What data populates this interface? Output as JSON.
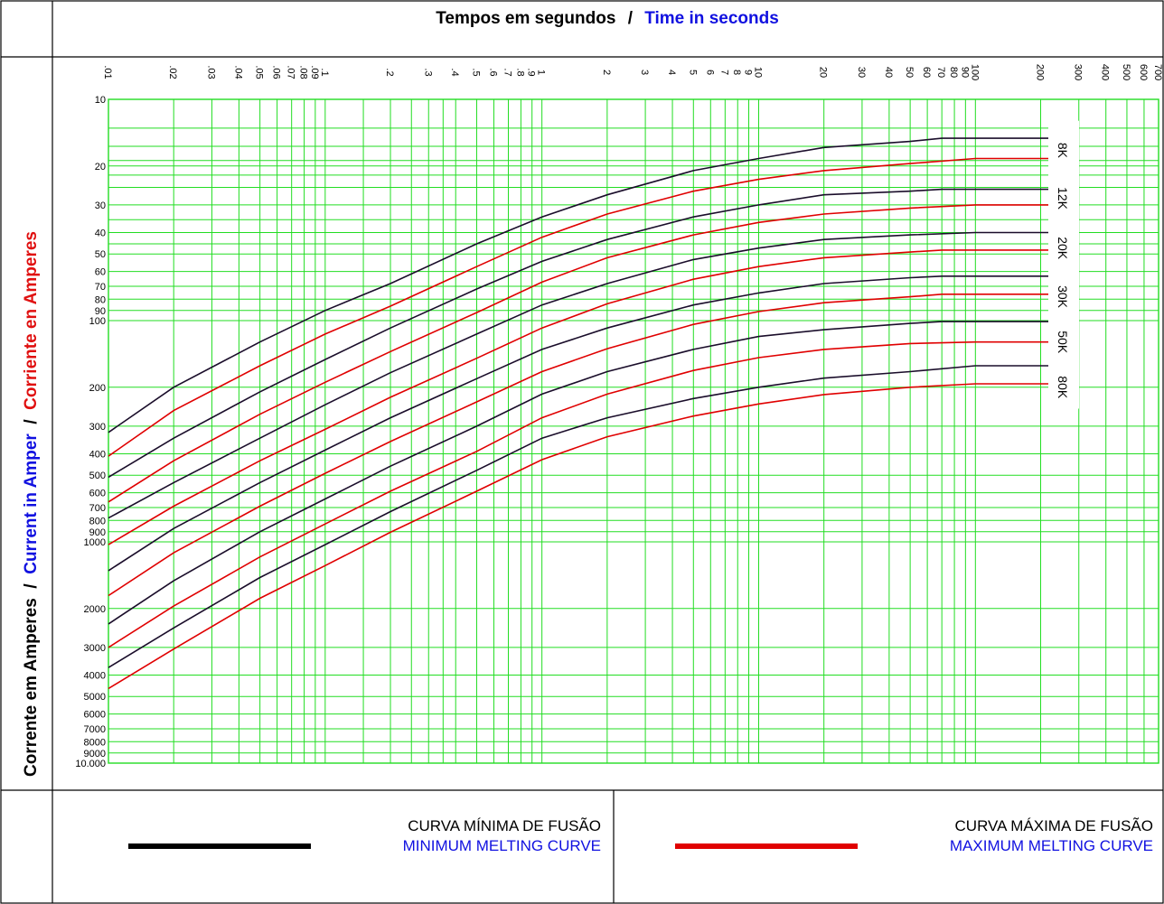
{
  "header": {
    "title_pt": "Tempos em segundos",
    "separator": "/",
    "title_en": "Time in seconds"
  },
  "side_label": {
    "pt": "Corrente em Amperes",
    "sep1": " / ",
    "en": "Current in Amper",
    "sep2": " / ",
    "es": "Corriente en Amperes"
  },
  "legend": {
    "min": {
      "line1": "CURVA MÍNIMA DE FUSÃO",
      "line2": "MINIMUM MELTING CURVE"
    },
    "max": {
      "line1": "CURVA MÁXIMA DE FUSÃO",
      "line2": "MAXIMUM MELTING CURVE"
    }
  },
  "colors": {
    "grid": "#22dd22",
    "min_curve": "#1a0d2a",
    "max_curve": "#e00000",
    "title_pt": "#000000",
    "title_en": "#1010e0",
    "label_es": "#e01010",
    "legend_en": "#1010e0"
  },
  "chart_data": {
    "type": "line",
    "x_scale": "log",
    "y_scale": "log",
    "y_inverted": true,
    "x_range": [
      0.01,
      700
    ],
    "y_range": [
      10,
      10000
    ],
    "x_ticks": [
      {
        "v": 0.01,
        "l": ".01"
      },
      {
        "v": 0.02,
        "l": ".02"
      },
      {
        "v": 0.03,
        "l": ".03"
      },
      {
        "v": 0.04,
        "l": ".04"
      },
      {
        "v": 0.05,
        "l": ".05"
      },
      {
        "v": 0.06,
        "l": ".06"
      },
      {
        "v": 0.07,
        "l": ".07"
      },
      {
        "v": 0.08,
        "l": ".08"
      },
      {
        "v": 0.09,
        "l": ".09"
      },
      {
        "v": 0.1,
        "l": ".1"
      },
      {
        "v": 0.2,
        "l": ".2"
      },
      {
        "v": 0.3,
        "l": ".3"
      },
      {
        "v": 0.4,
        "l": ".4"
      },
      {
        "v": 0.5,
        "l": ".5"
      },
      {
        "v": 0.6,
        "l": ".6"
      },
      {
        "v": 0.7,
        "l": ".7"
      },
      {
        "v": 0.8,
        "l": ".8"
      },
      {
        "v": 0.9,
        "l": ".9"
      },
      {
        "v": 1,
        "l": "1"
      },
      {
        "v": 2,
        "l": "2"
      },
      {
        "v": 3,
        "l": "3"
      },
      {
        "v": 4,
        "l": "4"
      },
      {
        "v": 5,
        "l": "5"
      },
      {
        "v": 6,
        "l": "6"
      },
      {
        "v": 7,
        "l": "7"
      },
      {
        "v": 8,
        "l": "8"
      },
      {
        "v": 9,
        "l": "9"
      },
      {
        "v": 10,
        "l": "10"
      },
      {
        "v": 20,
        "l": "20"
      },
      {
        "v": 30,
        "l": "30"
      },
      {
        "v": 40,
        "l": "40"
      },
      {
        "v": 50,
        "l": "50"
      },
      {
        "v": 60,
        "l": "60"
      },
      {
        "v": 70,
        "l": "70"
      },
      {
        "v": 80,
        "l": "80"
      },
      {
        "v": 90,
        "l": "90"
      },
      {
        "v": 100,
        "l": "100"
      },
      {
        "v": 200,
        "l": "200"
      },
      {
        "v": 300,
        "l": "300"
      },
      {
        "v": 400,
        "l": "400"
      },
      {
        "v": 500,
        "l": "500"
      },
      {
        "v": 600,
        "l": "600"
      },
      {
        "v": 700,
        "l": "700"
      }
    ],
    "y_ticks": [
      {
        "v": 10,
        "l": "10"
      },
      {
        "v": 20,
        "l": "20"
      },
      {
        "v": 30,
        "l": "30"
      },
      {
        "v": 40,
        "l": "40"
      },
      {
        "v": 50,
        "l": "50"
      },
      {
        "v": 60,
        "l": "60"
      },
      {
        "v": 70,
        "l": "70"
      },
      {
        "v": 80,
        "l": "80"
      },
      {
        "v": 90,
        "l": "90"
      },
      {
        "v": 100,
        "l": "100"
      },
      {
        "v": 200,
        "l": "200"
      },
      {
        "v": 300,
        "l": "300"
      },
      {
        "v": 400,
        "l": "400"
      },
      {
        "v": 500,
        "l": "500"
      },
      {
        "v": 600,
        "l": "600"
      },
      {
        "v": 700,
        "l": "700"
      },
      {
        "v": 800,
        "l": "800"
      },
      {
        "v": 900,
        "l": "900"
      },
      {
        "v": 1000,
        "l": "1000"
      },
      {
        "v": 2000,
        "l": "2000"
      },
      {
        "v": 3000,
        "l": "3000"
      },
      {
        "v": 4000,
        "l": "4000"
      },
      {
        "v": 5000,
        "l": "5000"
      },
      {
        "v": 6000,
        "l": "6000"
      },
      {
        "v": 7000,
        "l": "7000"
      },
      {
        "v": 8000,
        "l": "8000"
      },
      {
        "v": 9000,
        "l": "9000"
      },
      {
        "v": 10000,
        "l": "10.000"
      }
    ],
    "extra_y_grid": [
      13.5,
      16.3,
      18.9,
      22,
      25,
      35,
      45
    ],
    "extra_x_grid": [
      0.15,
      0.25,
      0.35
    ],
    "series_labels": [
      {
        "label": "8K",
        "y": 17
      },
      {
        "label": "12K",
        "y": 28
      },
      {
        "label": "20K",
        "y": 47
      },
      {
        "label": "30K",
        "y": 78
      },
      {
        "label": "50K",
        "y": 125
      },
      {
        "label": "80K",
        "y": 200
      }
    ],
    "series": [
      {
        "rating": "8K",
        "kind": "min",
        "points": [
          [
            0.01,
            320
          ],
          [
            0.02,
            200
          ],
          [
            0.05,
            125
          ],
          [
            0.1,
            90
          ],
          [
            0.2,
            68
          ],
          [
            0.5,
            45
          ],
          [
            1,
            34
          ],
          [
            2,
            27
          ],
          [
            5,
            21
          ],
          [
            10,
            18.5
          ],
          [
            20,
            16.5
          ],
          [
            50,
            15.5
          ],
          [
            70,
            15
          ],
          [
            300,
            15
          ]
        ]
      },
      {
        "rating": "8K",
        "kind": "max",
        "points": [
          [
            0.01,
            410
          ],
          [
            0.02,
            255
          ],
          [
            0.05,
            160
          ],
          [
            0.1,
            115
          ],
          [
            0.2,
            86
          ],
          [
            0.5,
            57
          ],
          [
            1,
            42
          ],
          [
            2,
            33
          ],
          [
            5,
            26
          ],
          [
            10,
            23
          ],
          [
            20,
            21
          ],
          [
            50,
            19.5
          ],
          [
            100,
            18.5
          ],
          [
            300,
            18.5
          ]
        ]
      },
      {
        "rating": "12K",
        "kind": "min",
        "points": [
          [
            0.01,
            510
          ],
          [
            0.02,
            340
          ],
          [
            0.05,
            210
          ],
          [
            0.1,
            150
          ],
          [
            0.2,
            108
          ],
          [
            0.5,
            72
          ],
          [
            1,
            54
          ],
          [
            2,
            43
          ],
          [
            5,
            34
          ],
          [
            10,
            30
          ],
          [
            20,
            27
          ],
          [
            50,
            26
          ],
          [
            70,
            25.5
          ],
          [
            300,
            25.5
          ]
        ]
      },
      {
        "rating": "12K",
        "kind": "max",
        "points": [
          [
            0.01,
            660
          ],
          [
            0.02,
            430
          ],
          [
            0.05,
            265
          ],
          [
            0.1,
            190
          ],
          [
            0.2,
            138
          ],
          [
            0.5,
            92
          ],
          [
            1,
            67
          ],
          [
            2,
            52
          ],
          [
            5,
            41
          ],
          [
            10,
            36
          ],
          [
            20,
            33
          ],
          [
            50,
            31
          ],
          [
            100,
            30
          ],
          [
            300,
            30
          ]
        ]
      },
      {
        "rating": "20K",
        "kind": "min",
        "points": [
          [
            0.01,
            780
          ],
          [
            0.02,
            540
          ],
          [
            0.05,
            340
          ],
          [
            0.1,
            240
          ],
          [
            0.2,
            172
          ],
          [
            0.5,
            115
          ],
          [
            1,
            85
          ],
          [
            2,
            68
          ],
          [
            5,
            53
          ],
          [
            10,
            47
          ],
          [
            20,
            43
          ],
          [
            50,
            41
          ],
          [
            100,
            40
          ],
          [
            300,
            40
          ]
        ]
      },
      {
        "rating": "20K",
        "kind": "max",
        "points": [
          [
            0.01,
            1030
          ],
          [
            0.02,
            690
          ],
          [
            0.05,
            430
          ],
          [
            0.1,
            310
          ],
          [
            0.2,
            222
          ],
          [
            0.5,
            148
          ],
          [
            1,
            108
          ],
          [
            2,
            84
          ],
          [
            5,
            65
          ],
          [
            10,
            57
          ],
          [
            20,
            52
          ],
          [
            50,
            49
          ],
          [
            70,
            48
          ],
          [
            300,
            48
          ]
        ]
      },
      {
        "rating": "30K",
        "kind": "min",
        "points": [
          [
            0.01,
            1350
          ],
          [
            0.02,
            870
          ],
          [
            0.05,
            540
          ],
          [
            0.1,
            385
          ],
          [
            0.2,
            275
          ],
          [
            0.5,
            183
          ],
          [
            1,
            135
          ],
          [
            2,
            108
          ],
          [
            5,
            85
          ],
          [
            10,
            75
          ],
          [
            20,
            68
          ],
          [
            50,
            64
          ],
          [
            70,
            63
          ],
          [
            300,
            63
          ]
        ]
      },
      {
        "rating": "30K",
        "kind": "max",
        "points": [
          [
            0.01,
            1750
          ],
          [
            0.02,
            1120
          ],
          [
            0.05,
            690
          ],
          [
            0.1,
            490
          ],
          [
            0.2,
            352
          ],
          [
            0.5,
            233
          ],
          [
            1,
            170
          ],
          [
            2,
            134
          ],
          [
            5,
            104
          ],
          [
            10,
            91
          ],
          [
            20,
            83
          ],
          [
            50,
            78
          ],
          [
            70,
            76
          ],
          [
            300,
            76
          ]
        ]
      },
      {
        "rating": "50K",
        "kind": "min",
        "points": [
          [
            0.01,
            2350
          ],
          [
            0.02,
            1500
          ],
          [
            0.05,
            900
          ],
          [
            0.1,
            640
          ],
          [
            0.2,
            455
          ],
          [
            0.5,
            300
          ],
          [
            1,
            215
          ],
          [
            2,
            170
          ],
          [
            5,
            135
          ],
          [
            10,
            118
          ],
          [
            20,
            110
          ],
          [
            50,
            103
          ],
          [
            70,
            101
          ],
          [
            300,
            101
          ]
        ]
      },
      {
        "rating": "50K",
        "kind": "max",
        "points": [
          [
            0.01,
            3000
          ],
          [
            0.02,
            1950
          ],
          [
            0.05,
            1170
          ],
          [
            0.1,
            830
          ],
          [
            0.2,
            590
          ],
          [
            0.5,
            390
          ],
          [
            1,
            275
          ],
          [
            2,
            215
          ],
          [
            5,
            168
          ],
          [
            10,
            147
          ],
          [
            20,
            135
          ],
          [
            50,
            127
          ],
          [
            100,
            125
          ],
          [
            300,
            125
          ]
        ]
      },
      {
        "rating": "80K",
        "kind": "min",
        "points": [
          [
            0.01,
            3700
          ],
          [
            0.02,
            2450
          ],
          [
            0.05,
            1450
          ],
          [
            0.1,
            1030
          ],
          [
            0.2,
            730
          ],
          [
            0.5,
            475
          ],
          [
            1,
            340
          ],
          [
            2,
            275
          ],
          [
            5,
            225
          ],
          [
            10,
            200
          ],
          [
            20,
            182
          ],
          [
            50,
            170
          ],
          [
            100,
            160
          ],
          [
            300,
            160
          ]
        ]
      },
      {
        "rating": "80K",
        "kind": "max",
        "points": [
          [
            0.01,
            4600
          ],
          [
            0.02,
            3050
          ],
          [
            0.05,
            1800
          ],
          [
            0.1,
            1280
          ],
          [
            0.2,
            905
          ],
          [
            0.5,
            590
          ],
          [
            1,
            425
          ],
          [
            2,
            335
          ],
          [
            5,
            270
          ],
          [
            10,
            238
          ],
          [
            20,
            216
          ],
          [
            50,
            200
          ],
          [
            100,
            193
          ],
          [
            300,
            193
          ]
        ]
      }
    ]
  }
}
